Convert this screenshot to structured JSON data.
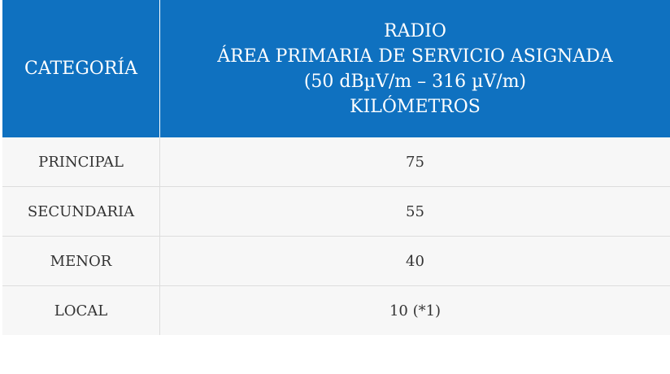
{
  "header": {
    "category": "CATEGORÍA",
    "radio_lines": [
      "RADIO",
      "ÁREA PRIMARIA DE SERVICIO ASIGNADA",
      "(50 dBµV/m – 316 µV/m)",
      "KILÓMETROS"
    ]
  },
  "rows": [
    {
      "category": "PRINCIPAL",
      "value": "75"
    },
    {
      "category": "SECUNDARIA",
      "value": "55"
    },
    {
      "category": "MENOR",
      "value": "40"
    },
    {
      "category": "LOCAL",
      "value": "10 (*1)"
    }
  ],
  "colors": {
    "header_bg": "#0f71c0",
    "header_text": "#ffffff",
    "row_bg": "#f7f7f7",
    "row_text": "#333333",
    "border": "#dddddd"
  }
}
